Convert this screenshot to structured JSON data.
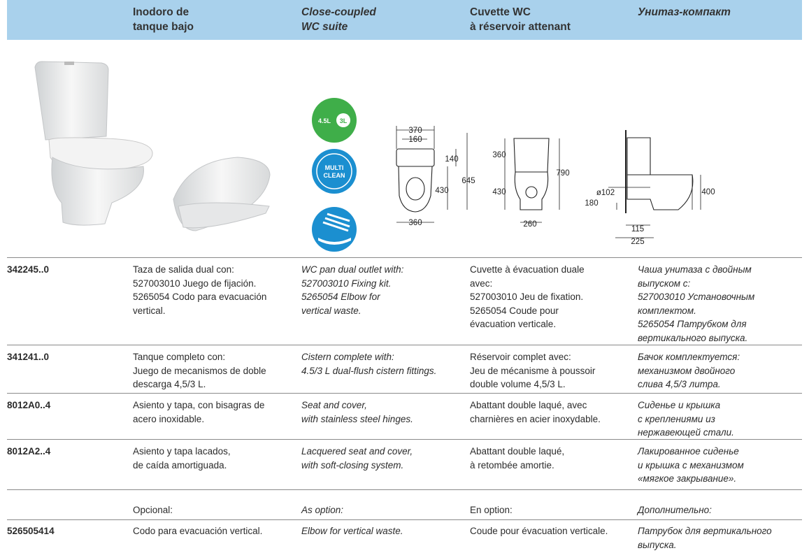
{
  "header": {
    "columns": [
      [
        "Inodoro de",
        "tanque bajo"
      ],
      [
        "Close-coupled",
        "WC suite"
      ],
      [
        "Cuvette WC",
        "à réservoir attenant"
      ],
      [
        "Унитаз-компакт"
      ]
    ]
  },
  "icons": {
    "flush": [
      "4.5L",
      "3L"
    ],
    "multiclean": [
      "MULTI",
      "CLEAN"
    ]
  },
  "drawings": {
    "top": [
      "370",
      "160",
      "140",
      "645",
      "430",
      "360"
    ],
    "front": [
      "360",
      "790",
      "430",
      "260"
    ],
    "side": [
      "ø102",
      "180",
      "400",
      "115",
      "225"
    ]
  },
  "table": {
    "rows": [
      {
        "code": "342245..0",
        "cells": [
          [
            "Taza de salida dual con:",
            "527003010 Juego de fijación.",
            "5265054 Codo para evacuación",
            "vertical."
          ],
          [
            "WC pan dual outlet with:",
            "527003010 Fixing kit.",
            "5265054 Elbow for",
            "vertical waste."
          ],
          [
            "Cuvette à évacuation duale",
            "avec:",
            "527003010 Jeu de fixation.",
            "5265054 Coude pour",
            "évacuation verticale."
          ],
          [
            "Чаша унитаза с двойным",
            "выпуском с:",
            "527003010 Установочным",
            "комплектом.",
            "5265054 Патрубком для",
            "вертикального выпуска."
          ]
        ]
      },
      {
        "code": "341241..0",
        "cells": [
          [
            "Tanque completo con:",
            "Juego de mecanismos de doble",
            "descarga 4,5/3 L."
          ],
          [
            "Cistern complete with:",
            "4.5/3 L dual-flush cistern fittings."
          ],
          [
            "Réservoir complet avec:",
            "Jeu de mécanisme à poussoir",
            "double volume 4,5/3 L."
          ],
          [
            "Бачок комплектуется:",
            "механизмом двойного",
            "слива 4,5/3 литра."
          ]
        ]
      },
      {
        "code": "8012A0..4",
        "cells": [
          [
            "Asiento y tapa, con bisagras de",
            "acero inoxidable."
          ],
          [
            "Seat and cover,",
            "with stainless steel hinges."
          ],
          [
            "Abattant double laqué, avec",
            "charnières en acier inoxydable."
          ],
          [
            "Сиденье и крышка",
            "с креплениями из",
            "нержавеющей стали."
          ]
        ]
      },
      {
        "code": "8012A2..4",
        "cells": [
          [
            "Asiento y tapa lacados,",
            "de caída amortiguada."
          ],
          [
            "Lacquered seat and cover,",
            "with soft-closing system."
          ],
          [
            "Abattant double laqué,",
            "à retombée amortie."
          ],
          [
            "Лакированное сиденье",
            "и крышка с механизмом",
            "«мягкое закрывание»."
          ]
        ]
      },
      {
        "cells": [
          [
            "Opcional:"
          ],
          [
            "As option:"
          ],
          [
            "En option:"
          ],
          [
            "Дополнительно:"
          ]
        ]
      },
      {
        "code": "526505414",
        "cells": [
          [
            "Codo para evacuación vertical."
          ],
          [
            "Elbow for vertical waste."
          ],
          [
            "Coude pour évacuation verticale."
          ],
          [
            "Патрубок для вертикального",
            "выпуска."
          ]
        ]
      }
    ]
  }
}
